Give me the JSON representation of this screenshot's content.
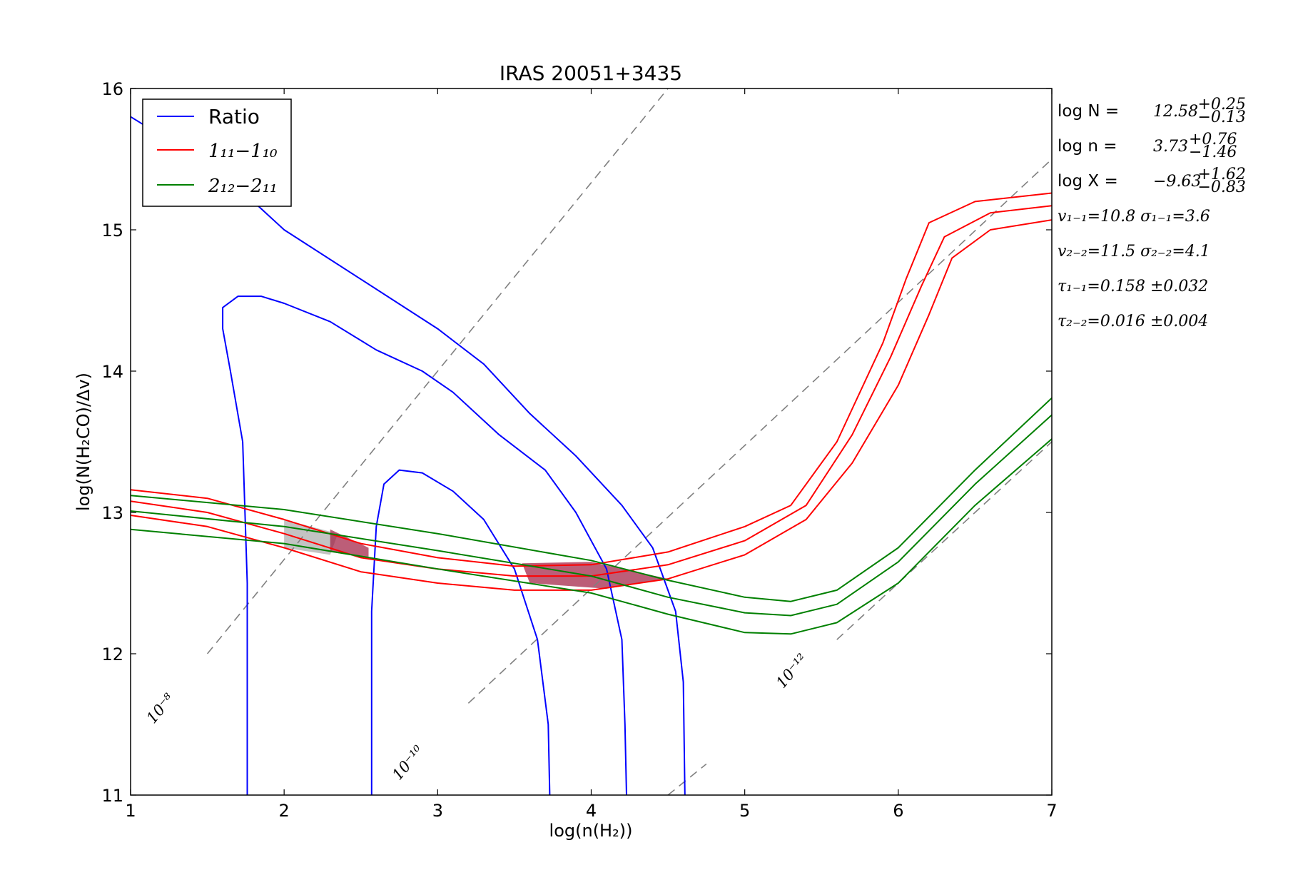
{
  "chart_data": {
    "type": "line",
    "title": "IRAS 20051+3435",
    "xlabel": "log(n(H₂))",
    "ylabel": "log(N(H₂CO)/Δv)",
    "xlim": [
      1,
      7
    ],
    "ylim": [
      11,
      16
    ],
    "xticks": [
      "1",
      "2",
      "3",
      "4",
      "5",
      "6",
      "7"
    ],
    "yticks": [
      "11",
      "12",
      "13",
      "14",
      "15",
      "16"
    ],
    "grid": false,
    "legend_position": "top-left",
    "legend": [
      {
        "label": "Ratio",
        "color": "#0000ff"
      },
      {
        "label": "1₁₁−1₁₀",
        "color": "#ff0000"
      },
      {
        "label": "2₁₂−2₁₁",
        "color": "#008000"
      }
    ],
    "series": [
      {
        "group": "ratio",
        "color": "#0000ff",
        "points": [
          [
            1.0,
            15.8
          ],
          [
            1.3,
            15.6
          ],
          [
            1.7,
            15.3
          ],
          [
            2.0,
            15.0
          ],
          [
            2.5,
            14.65
          ],
          [
            3.0,
            14.3
          ],
          [
            3.3,
            14.05
          ],
          [
            3.6,
            13.7
          ],
          [
            3.9,
            13.4
          ],
          [
            4.2,
            13.05
          ],
          [
            4.4,
            12.75
          ],
          [
            4.55,
            12.3
          ],
          [
            4.6,
            11.8
          ],
          [
            4.61,
            11.0
          ]
        ]
      },
      {
        "group": "ratio",
        "color": "#0000ff",
        "points": [
          [
            1.76,
            11.0
          ],
          [
            1.76,
            12.5
          ],
          [
            1.73,
            13.5
          ],
          [
            1.65,
            14.0
          ],
          [
            1.6,
            14.3
          ],
          [
            1.6,
            14.45
          ],
          [
            1.7,
            14.53
          ],
          [
            1.85,
            14.53
          ],
          [
            2.0,
            14.48
          ],
          [
            2.3,
            14.35
          ],
          [
            2.6,
            14.15
          ],
          [
            2.9,
            14.0
          ],
          [
            3.1,
            13.85
          ],
          [
            3.4,
            13.55
          ],
          [
            3.7,
            13.3
          ],
          [
            3.9,
            13.0
          ],
          [
            4.1,
            12.6
          ],
          [
            4.2,
            12.1
          ],
          [
            4.22,
            11.5
          ],
          [
            4.23,
            11.0
          ]
        ]
      },
      {
        "group": "ratio",
        "color": "#0000ff",
        "points": [
          [
            2.57,
            11.0
          ],
          [
            2.57,
            12.3
          ],
          [
            2.6,
            12.9
          ],
          [
            2.65,
            13.2
          ],
          [
            2.75,
            13.3
          ],
          [
            2.9,
            13.28
          ],
          [
            3.1,
            13.15
          ],
          [
            3.3,
            12.95
          ],
          [
            3.5,
            12.6
          ],
          [
            3.65,
            12.1
          ],
          [
            3.72,
            11.5
          ],
          [
            3.73,
            11.0
          ]
        ]
      },
      {
        "group": "oneone",
        "color": "#ff0000",
        "points": [
          [
            1.0,
            13.16
          ],
          [
            1.5,
            13.1
          ],
          [
            2.0,
            12.95
          ],
          [
            2.5,
            12.78
          ],
          [
            3.0,
            12.68
          ],
          [
            3.5,
            12.62
          ],
          [
            4.0,
            12.63
          ],
          [
            4.5,
            12.72
          ],
          [
            5.0,
            12.9
          ],
          [
            5.3,
            13.05
          ],
          [
            5.6,
            13.5
          ],
          [
            5.9,
            14.2
          ],
          [
            6.05,
            14.65
          ],
          [
            6.2,
            15.05
          ],
          [
            6.5,
            15.2
          ],
          [
            7.0,
            15.26
          ]
        ]
      },
      {
        "group": "oneone",
        "color": "#ff0000",
        "points": [
          [
            1.0,
            13.08
          ],
          [
            1.5,
            13.0
          ],
          [
            2.0,
            12.85
          ],
          [
            2.5,
            12.68
          ],
          [
            3.0,
            12.6
          ],
          [
            3.5,
            12.55
          ],
          [
            4.0,
            12.55
          ],
          [
            4.5,
            12.63
          ],
          [
            5.0,
            12.8
          ],
          [
            5.4,
            13.05
          ],
          [
            5.7,
            13.55
          ],
          [
            5.95,
            14.1
          ],
          [
            6.15,
            14.6
          ],
          [
            6.3,
            14.95
          ],
          [
            6.6,
            15.12
          ],
          [
            7.0,
            15.17
          ]
        ]
      },
      {
        "group": "oneone",
        "color": "#ff0000",
        "points": [
          [
            1.0,
            12.98
          ],
          [
            1.5,
            12.9
          ],
          [
            2.0,
            12.75
          ],
          [
            2.5,
            12.58
          ],
          [
            3.0,
            12.5
          ],
          [
            3.5,
            12.45
          ],
          [
            4.0,
            12.45
          ],
          [
            4.5,
            12.53
          ],
          [
            5.0,
            12.7
          ],
          [
            5.4,
            12.95
          ],
          [
            5.7,
            13.35
          ],
          [
            6.0,
            13.9
          ],
          [
            6.2,
            14.4
          ],
          [
            6.35,
            14.8
          ],
          [
            6.6,
            15.0
          ],
          [
            7.0,
            15.07
          ]
        ]
      },
      {
        "group": "twotwo",
        "color": "#008000",
        "points": [
          [
            1.0,
            13.12
          ],
          [
            2.0,
            13.02
          ],
          [
            3.0,
            12.85
          ],
          [
            4.0,
            12.66
          ],
          [
            4.5,
            12.52
          ],
          [
            5.0,
            12.4
          ],
          [
            5.3,
            12.37
          ],
          [
            5.6,
            12.45
          ],
          [
            6.0,
            12.75
          ],
          [
            6.5,
            13.3
          ],
          [
            7.0,
            13.81
          ]
        ]
      },
      {
        "group": "twotwo",
        "color": "#008000",
        "points": [
          [
            1.0,
            13.01
          ],
          [
            2.0,
            12.9
          ],
          [
            3.0,
            12.73
          ],
          [
            4.0,
            12.55
          ],
          [
            4.5,
            12.4
          ],
          [
            5.0,
            12.29
          ],
          [
            5.3,
            12.27
          ],
          [
            5.6,
            12.35
          ],
          [
            6.0,
            12.65
          ],
          [
            6.5,
            13.2
          ],
          [
            7.0,
            13.69
          ]
        ]
      },
      {
        "group": "twotwo",
        "color": "#008000",
        "points": [
          [
            1.0,
            12.88
          ],
          [
            2.0,
            12.78
          ],
          [
            3.0,
            12.6
          ],
          [
            4.0,
            12.43
          ],
          [
            4.5,
            12.28
          ],
          [
            5.0,
            12.15
          ],
          [
            5.3,
            12.14
          ],
          [
            5.6,
            12.22
          ],
          [
            6.0,
            12.5
          ],
          [
            6.5,
            13.05
          ],
          [
            7.0,
            13.52
          ]
        ]
      }
    ],
    "diagonals": [
      {
        "from": [
          1.5,
          12.0
        ],
        "to": [
          4.5,
          16.0
        ],
        "label": "10⁻⁸"
      },
      {
        "from": [
          3.2,
          11.65
        ],
        "to": [
          7.0,
          15.5
        ],
        "label": "10⁻¹⁰"
      },
      {
        "from": [
          4.5,
          11.0
        ],
        "to": [
          4.75,
          11.22
        ],
        "label": "10⁻¹²"
      },
      {
        "from": [
          5.6,
          12.1
        ],
        "to": [
          7.0,
          13.5
        ],
        "label": ""
      }
    ],
    "diagonal_color": "#808080",
    "shaded_regions": [
      {
        "color": "#aaaaaa",
        "points": [
          [
            2.0,
            12.95
          ],
          [
            2.0,
            12.75
          ],
          [
            2.3,
            12.7
          ],
          [
            2.35,
            12.85
          ]
        ]
      },
      {
        "color": "#a0193f",
        "points": [
          [
            2.3,
            12.88
          ],
          [
            2.55,
            12.75
          ],
          [
            2.55,
            12.68
          ],
          [
            2.3,
            12.72
          ]
        ]
      },
      {
        "color": "#a0193f",
        "points": [
          [
            3.55,
            12.64
          ],
          [
            4.0,
            12.65
          ],
          [
            4.5,
            12.53
          ],
          [
            4.1,
            12.46
          ],
          [
            3.6,
            12.5
          ]
        ]
      }
    ],
    "annotations": [
      {
        "text": "10⁻⁸",
        "x": 1.15,
        "y": 11.5
      },
      {
        "text": "10⁻¹⁰",
        "x": 2.75,
        "y": 11.1
      },
      {
        "text": "10⁻¹²",
        "x": 5.25,
        "y": 11.75
      }
    ],
    "fit_results": [
      {
        "label": "log N = ",
        "value": "12.58",
        "sup": "+0.25",
        "sub": "−0.13"
      },
      {
        "label": "log n = ",
        "value": "3.73",
        "sup": "+0.76",
        "sub": "−1.46"
      },
      {
        "label": "log X = ",
        "value": "−9.63",
        "sup": "+1.62",
        "sub": "−0.83"
      },
      {
        "label": "",
        "value": "v₁₋₁=10.8   σ₁₋₁=3.6"
      },
      {
        "label": "",
        "value": "v₂₋₂=11.5   σ₂₋₂=4.1"
      },
      {
        "label": "",
        "value": "τ₁₋₁=0.158 ±0.032"
      },
      {
        "label": "",
        "value": "τ₂₋₂=0.016 ±0.004"
      }
    ]
  }
}
